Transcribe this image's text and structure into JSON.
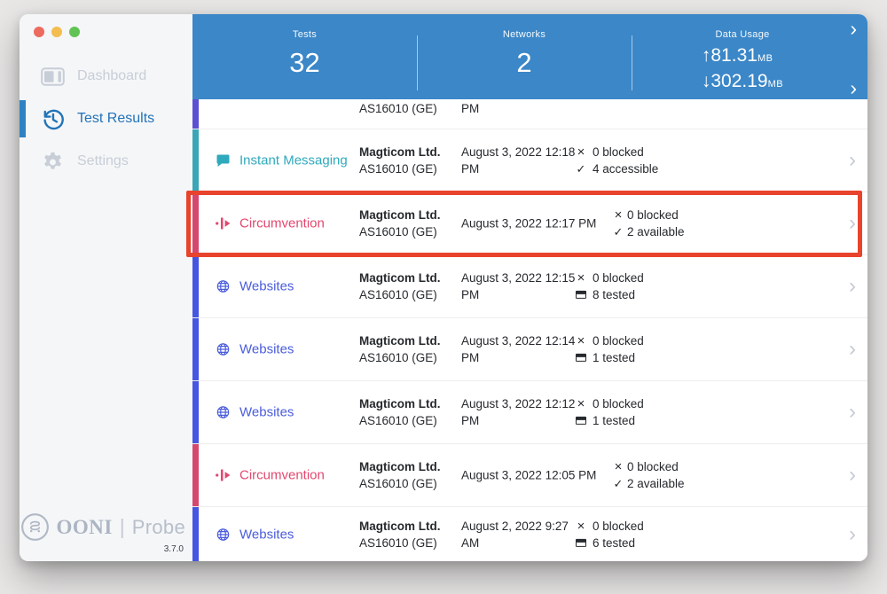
{
  "ui": {
    "chevron": "›"
  },
  "colors": {
    "header_blue": "#3b87c8",
    "sidebar_active_blue": "#2273b8",
    "instant_messaging_teal": "#2fa9bc",
    "circumvention_pink": "#e2486f",
    "websites_blue": "#4a5cdb",
    "partial_row_purple": "#5b4fd4",
    "annotation_red": "#e8432c",
    "traffic_red": "#ec6a5e",
    "traffic_yellow": "#f4bd50",
    "traffic_green": "#61c354"
  },
  "sidebar": {
    "items": [
      {
        "label": "Dashboard",
        "icon": "dashboard-icon",
        "active": false
      },
      {
        "label": "Test Results",
        "icon": "history-clock-icon",
        "active": true
      },
      {
        "label": "Settings",
        "icon": "gear-icon",
        "active": false
      }
    ],
    "logo": {
      "ooni": "OONI",
      "divider": "|",
      "probe": "Probe",
      "version": "3.7.0"
    }
  },
  "header": {
    "chevron": "›",
    "stats": [
      {
        "label": "Tests",
        "value": "32"
      },
      {
        "label": "Networks",
        "value": "2"
      }
    ],
    "data_usage": {
      "label": "Data Usage",
      "upload": "↑81.31",
      "download": "↓302.19",
      "unit": "MB"
    }
  },
  "rows": [
    {
      "partial": true,
      "accent": "#5b4fd4",
      "asn": "AS16010 (GE)",
      "date": "PM"
    },
    {
      "name": "Instant Messaging",
      "icon": "chat-icon",
      "color": "#2fa9bc",
      "accent": "#3aa6b6",
      "network": "Magticom Ltd.",
      "asn": "AS16010 (GE)",
      "date": "August 3, 2022 12:18\nPM",
      "stats": [
        {
          "icon": "cross",
          "text": "0 blocked"
        },
        {
          "icon": "check",
          "text": "4 accessible"
        }
      ]
    },
    {
      "name": "Circumvention",
      "icon": "circumvention-icon",
      "color": "#e2486f",
      "accent": "#d6476e",
      "network": "Magticom Ltd.",
      "asn": "AS16010 (GE)",
      "date": "August 3, 2022 12:17 PM",
      "stats": [
        {
          "icon": "cross",
          "text": "0 blocked"
        },
        {
          "icon": "check",
          "text": "2 available"
        }
      ],
      "highlighted": true,
      "wide": true,
      "tight": true
    },
    {
      "name": "Websites",
      "icon": "globe-icon",
      "color": "#4a5cdb",
      "accent": "#4656e0",
      "network": "Magticom Ltd.",
      "asn": "AS16010 (GE)",
      "date": "August 3, 2022 12:15\nPM",
      "stats": [
        {
          "icon": "cross",
          "text": "0 blocked"
        },
        {
          "icon": "tested",
          "text": "8 tested"
        }
      ]
    },
    {
      "name": "Websites",
      "icon": "globe-icon",
      "color": "#4a5cdb",
      "accent": "#4656e0",
      "network": "Magticom Ltd.",
      "asn": "AS16010 (GE)",
      "date": "August 3, 2022 12:14\nPM",
      "stats": [
        {
          "icon": "cross",
          "text": "0 blocked"
        },
        {
          "icon": "tested",
          "text": "1 tested"
        }
      ]
    },
    {
      "name": "Websites",
      "icon": "globe-icon",
      "color": "#4a5cdb",
      "accent": "#4656e0",
      "network": "Magticom Ltd.",
      "asn": "AS16010 (GE)",
      "date": "August 3, 2022 12:12\nPM",
      "stats": [
        {
          "icon": "cross",
          "text": "0 blocked"
        },
        {
          "icon": "tested",
          "text": "1 tested"
        }
      ]
    },
    {
      "name": "Circumvention",
      "icon": "circumvention-icon",
      "color": "#e2486f",
      "accent": "#d6476e",
      "network": "Magticom Ltd.",
      "asn": "AS16010 (GE)",
      "date": "August 3, 2022 12:05\nPM",
      "stats": [
        {
          "icon": "cross",
          "text": "0 blocked"
        },
        {
          "icon": "check",
          "text": "2 available"
        }
      ],
      "wide": true,
      "tight": true
    },
    {
      "name": "Websites",
      "icon": "globe-icon",
      "color": "#4a5cdb",
      "accent": "#4656e0",
      "network": "Magticom Ltd.",
      "asn": "AS16010 (GE)",
      "date": "August 2, 2022 9:27 AM",
      "stats": [
        {
          "icon": "cross",
          "text": "0 blocked"
        },
        {
          "icon": "tested",
          "text": "6 tested"
        }
      ]
    }
  ]
}
